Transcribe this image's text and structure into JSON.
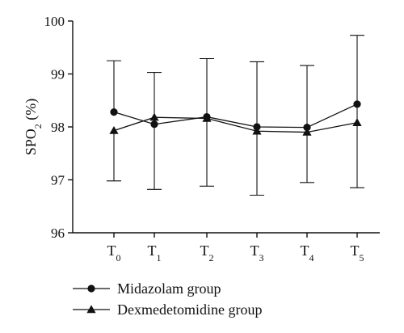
{
  "chart_data": {
    "type": "line",
    "ylabel_main": "SPO",
    "ylabel_sub": "2",
    "ylabel_suffix": " (%)",
    "ylim": [
      96,
      100
    ],
    "yticks": [
      96,
      97,
      98,
      99,
      100
    ],
    "categories": [
      {
        "main": "T",
        "sub": "0"
      },
      {
        "main": "T",
        "sub": "1"
      },
      {
        "main": "T",
        "sub": "2"
      },
      {
        "main": "T",
        "sub": "3"
      },
      {
        "main": "T",
        "sub": "4"
      },
      {
        "main": "T",
        "sub": "5"
      }
    ],
    "grid": false,
    "legend_position": "bottom-left",
    "series": [
      {
        "name": "Midazolam group",
        "marker": "circle",
        "values": [
          98.28,
          98.05,
          98.19,
          98.0,
          97.99,
          98.43
        ],
        "error_upper": [
          99.25,
          99.03,
          99.29,
          99.23,
          99.16,
          99.73
        ],
        "error_lower": [
          null,
          96.82,
          96.88,
          96.71,
          null,
          96.85
        ]
      },
      {
        "name": "Dexmedetomidine group",
        "marker": "triangle",
        "values": [
          97.93,
          98.18,
          98.16,
          97.92,
          97.9,
          98.08
        ],
        "error_upper": [
          null,
          null,
          null,
          null,
          null,
          null
        ],
        "error_lower": [
          96.98,
          null,
          null,
          null,
          96.95,
          null
        ]
      }
    ]
  }
}
